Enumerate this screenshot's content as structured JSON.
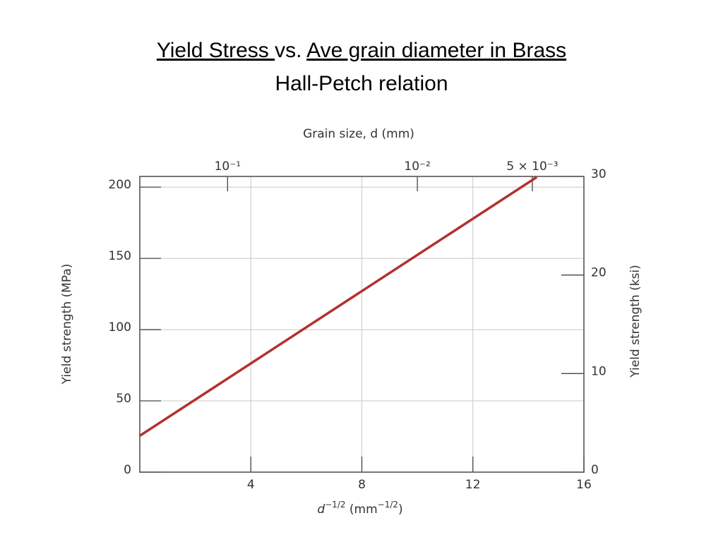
{
  "slide": {
    "title_segments": [
      {
        "text": "Yield Stress ",
        "underline": true
      },
      {
        "text": "vs. ",
        "underline": false
      },
      {
        "text": "Ave grain diameter in Brass",
        "underline": true
      }
    ],
    "subtitle": "Hall-Petch relation"
  },
  "chart_data": {
    "type": "line",
    "x_label": {
      "base": "d",
      "exp": "−1/2",
      "unit": " (mm",
      "unit_exp": "−1/2",
      "close": ")"
    },
    "y_label": "Yield strength (MPa)",
    "y2_label": "Yield strength (ksi)",
    "x2_label": "Grain size, d (mm)",
    "x": [
      0,
      14.3
    ],
    "series": [
      {
        "name": "Brass",
        "color": "#b3302f",
        "values": [
          25.5,
          207
        ]
      }
    ],
    "xlim": [
      0,
      16
    ],
    "xticks": [
      4,
      8,
      12,
      16
    ],
    "ylim": [
      0,
      207.5
    ],
    "yticks": [
      0,
      50,
      100,
      150,
      200
    ],
    "y2lim": [
      0,
      30
    ],
    "y2ticks": [
      0,
      10,
      20,
      30
    ],
    "x2ticks": [
      {
        "value": 0.1,
        "label": "10⁻¹"
      },
      {
        "value": 0.01,
        "label": "10⁻²"
      },
      {
        "value": 0.005,
        "label": "5 × 10⁻³"
      }
    ],
    "grid": true
  }
}
